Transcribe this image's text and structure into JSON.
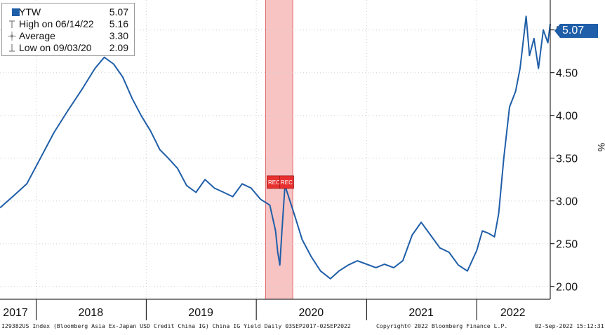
{
  "colors": {
    "series": "#1f5ea8",
    "recession_band": "#f7c3c3",
    "recession_band_edge": "#e06a6a",
    "rec_flag": "#e8312f",
    "badge": "#1f5ea8",
    "grid": "#d0d0d0"
  },
  "legend": {
    "rows": [
      {
        "label": "YTW",
        "value": "5.07",
        "glyph": "square-swatch"
      },
      {
        "label": "High on 06/14/22",
        "value": "5.16",
        "glyph": "high-marker-icon"
      },
      {
        "label": "Average",
        "value": "3.30",
        "glyph": "average-marker-icon"
      },
      {
        "label": "Low on 09/03/20",
        "value": "2.09",
        "glyph": "low-marker-icon"
      }
    ]
  },
  "last_value_label": "5.07",
  "rec_label": "REC",
  "footer": {
    "source": "I29382US Index (Bloomberg Asia Ex-Japan USD Credit China IG) China IG Yield  Daily 03SEP2017-02SEP2022",
    "copyright": "Copyright© 2022 Bloomberg Finance L.P.",
    "timestamp": "02-Sep-2022 15:12:31"
  },
  "chart_data": {
    "type": "line",
    "title": "",
    "xlabel": "",
    "ylabel": "%",
    "x_range": [
      "2017-09-03",
      "2022-09-02"
    ],
    "ylim": [
      1.85,
      5.35
    ],
    "yticks": [
      2.0,
      2.5,
      3.0,
      3.5,
      4.0,
      4.5,
      5.0
    ],
    "ytick_labels": [
      "2.00",
      "2.50",
      "3.00",
      "3.50",
      "4.00",
      "4.50",
      "5.00"
    ],
    "x_tick_labels": [
      {
        "label": "2017",
        "center": "2017-09-01"
      },
      {
        "label": "2018",
        "center": "2018-07-01"
      },
      {
        "label": "2019",
        "center": "2019-07-01"
      },
      {
        "label": "2020",
        "center": "2020-07-01"
      },
      {
        "label": "2021",
        "center": "2021-07-01"
      },
      {
        "label": "2022",
        "center": "2022-05-01"
      }
    ],
    "x_year_boundaries": [
      "2018-01-01",
      "2019-01-01",
      "2020-01-01",
      "2021-01-01",
      "2022-01-01"
    ],
    "grid": true,
    "legend_position": "top-left",
    "recession_band": {
      "start": "2020-02-01",
      "end": "2020-05-01"
    },
    "series": [
      {
        "name": "YTW",
        "x": [
          "2017-09-03",
          "2017-10-15",
          "2017-12-01",
          "2018-01-15",
          "2018-03-01",
          "2018-04-15",
          "2018-06-01",
          "2018-07-15",
          "2018-08-15",
          "2018-09-15",
          "2018-10-15",
          "2018-11-15",
          "2018-12-15",
          "2019-01-15",
          "2019-02-15",
          "2019-03-15",
          "2019-04-15",
          "2019-05-15",
          "2019-06-15",
          "2019-07-15",
          "2019-08-15",
          "2019-09-15",
          "2019-10-15",
          "2019-11-15",
          "2019-12-15",
          "2020-01-15",
          "2020-02-15",
          "2020-03-05",
          "2020-03-12",
          "2020-03-19",
          "2020-03-26",
          "2020-04-05",
          "2020-04-20",
          "2020-05-10",
          "2020-06-01",
          "2020-07-01",
          "2020-08-01",
          "2020-09-03",
          "2020-10-01",
          "2020-11-01",
          "2020-12-01",
          "2021-01-01",
          "2021-02-01",
          "2021-03-01",
          "2021-04-01",
          "2021-05-01",
          "2021-06-01",
          "2021-07-01",
          "2021-08-01",
          "2021-09-01",
          "2021-10-01",
          "2021-11-01",
          "2021-12-01",
          "2022-01-01",
          "2022-01-20",
          "2022-02-10",
          "2022-03-01",
          "2022-03-15",
          "2022-04-01",
          "2022-04-20",
          "2022-05-10",
          "2022-05-25",
          "2022-06-14",
          "2022-06-25",
          "2022-07-10",
          "2022-07-25",
          "2022-08-10",
          "2022-08-25",
          "2022-09-02"
        ],
        "values": [
          2.92,
          3.05,
          3.2,
          3.5,
          3.8,
          4.05,
          4.3,
          4.55,
          4.68,
          4.6,
          4.45,
          4.2,
          4.0,
          3.82,
          3.6,
          3.5,
          3.38,
          3.18,
          3.1,
          3.25,
          3.15,
          3.1,
          3.05,
          3.2,
          3.15,
          3.02,
          2.95,
          2.65,
          2.4,
          2.25,
          2.65,
          3.18,
          3.02,
          2.8,
          2.55,
          2.35,
          2.18,
          2.09,
          2.18,
          2.25,
          2.3,
          2.26,
          2.22,
          2.26,
          2.22,
          2.3,
          2.6,
          2.75,
          2.6,
          2.45,
          2.4,
          2.25,
          2.18,
          2.42,
          2.65,
          2.62,
          2.58,
          2.85,
          3.5,
          4.1,
          4.28,
          4.55,
          5.16,
          4.7,
          4.9,
          4.55,
          5.0,
          4.85,
          5.07
        ]
      }
    ]
  }
}
